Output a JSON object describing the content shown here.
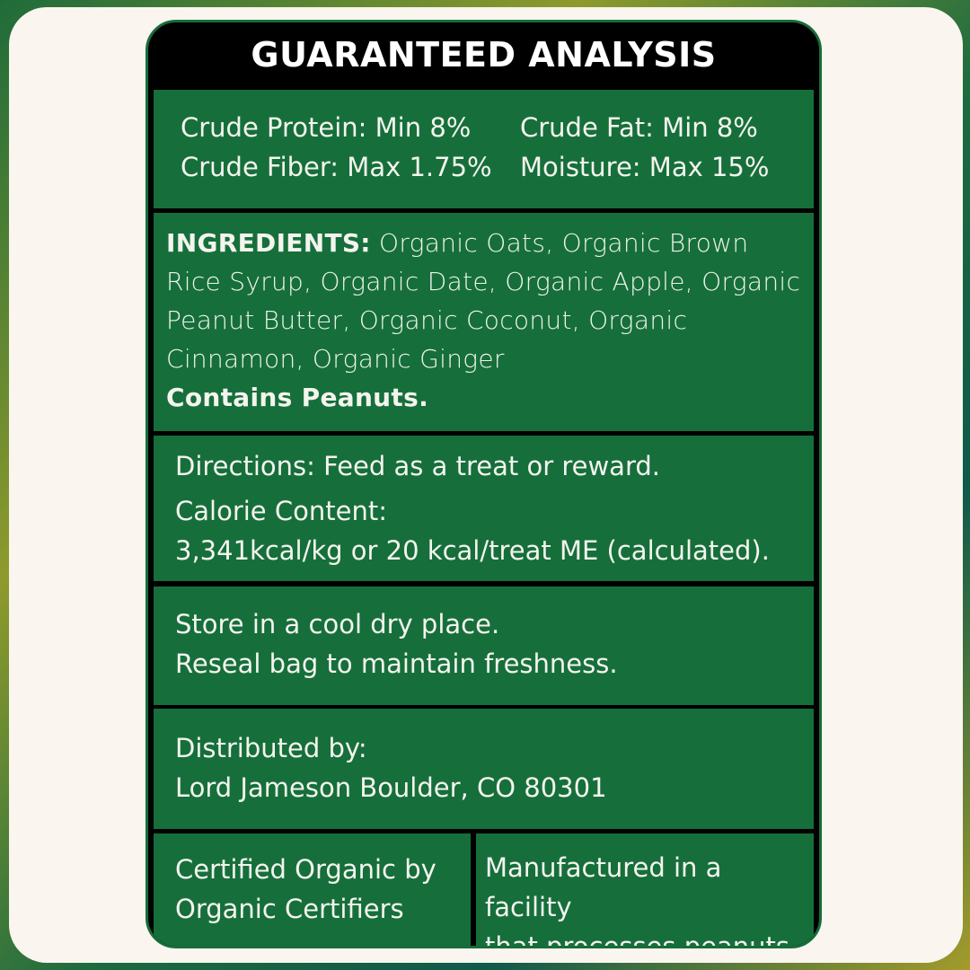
{
  "header": {
    "title": "GUARANTEED ANALYSIS"
  },
  "analysis": {
    "protein": "Crude Protein: Min 8%",
    "fat": "Crude Fat: Min 8%",
    "fiber": "Crude Fiber: Max 1.75%",
    "moisture": "Moisture: Max 15%"
  },
  "ingredients": {
    "label": "INGREDIENTS:",
    "text": "Organic Oats, Organic Brown Rice Syrup, Organic Date, Organic Apple, Organic Peanut Butter, Organic Coconut, Organic Cinnamon, Organic Ginger",
    "allergen": "Contains Peanuts."
  },
  "directions": {
    "text": "Directions: Feed as a treat or reward.",
    "calorie_label": "Calorie Content:",
    "calorie_value": "3,341kcal/kg or 20 kcal/treat ME (calculated)."
  },
  "storage": {
    "line1": "Store in a cool dry place.",
    "line2": "Reseal bag to maintain freshness."
  },
  "distributor": {
    "label": "Distributed by:",
    "name": "Lord Jameson Boulder, CO 80301"
  },
  "certification": {
    "line1": "Certified Organic by",
    "line2": "Organic Certifiers"
  },
  "facility": {
    "line1": "Manufactured in a facility",
    "line2": "that processes peanuts."
  },
  "colors": {
    "green": "#166f3b",
    "black": "#000000",
    "cream": "#faf5ee"
  }
}
